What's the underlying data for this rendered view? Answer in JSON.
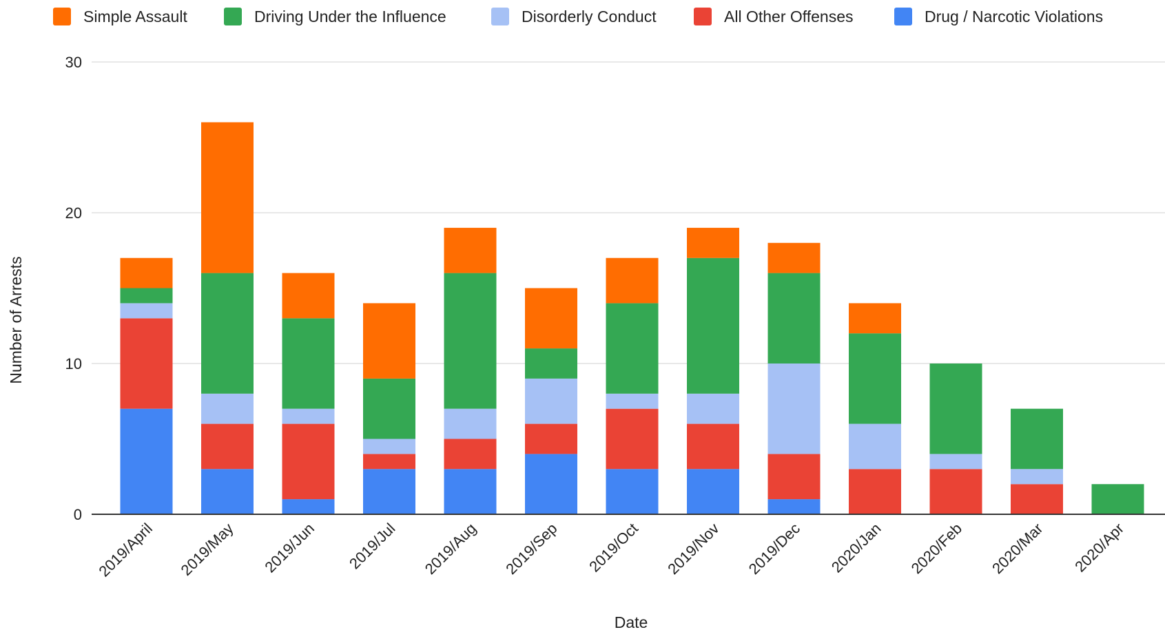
{
  "chart_data": {
    "type": "bar",
    "stacked": true,
    "xlabel": "Date",
    "ylabel": "Number of Arrests",
    "ylim": [
      0,
      30
    ],
    "yticks": [
      0,
      10,
      20,
      30
    ],
    "grid": true,
    "legend_position": "top",
    "categories": [
      "2019/April",
      "2019/May",
      "2019/Jun",
      "2019/Jul",
      "2019/Aug",
      "2019/Sep",
      "2019/Oct",
      "2019/Nov",
      "2019/Dec",
      "2020/Jan",
      "2020/Feb",
      "2020/Mar",
      "2020/Apr"
    ],
    "series": [
      {
        "name": "Drug / Narcotic Violations",
        "color": "#4285F4",
        "values": [
          7,
          3,
          1,
          3,
          3,
          4,
          3,
          3,
          1,
          0,
          0,
          0,
          0
        ]
      },
      {
        "name": "All Other Offenses",
        "color": "#EA4335",
        "values": [
          6,
          3,
          5,
          1,
          2,
          2,
          4,
          3,
          3,
          3,
          3,
          2,
          0
        ]
      },
      {
        "name": "Disorderly Conduct",
        "color": "#A6C1F5",
        "values": [
          1,
          2,
          1,
          1,
          2,
          3,
          1,
          2,
          6,
          3,
          1,
          1,
          0
        ]
      },
      {
        "name": "Driving Under the Influence",
        "color": "#34A853",
        "values": [
          1,
          8,
          6,
          4,
          9,
          2,
          6,
          9,
          6,
          6,
          6,
          4,
          2
        ]
      },
      {
        "name": "Simple Assault",
        "color": "#FF6D01",
        "values": [
          2,
          10,
          3,
          5,
          3,
          4,
          3,
          2,
          2,
          2,
          0,
          0,
          0
        ]
      }
    ],
    "legend_order": [
      "Simple Assault",
      "Driving Under the Influence",
      "Disorderly Conduct",
      "All Other Offenses",
      "Drug / Narcotic Violations"
    ]
  }
}
